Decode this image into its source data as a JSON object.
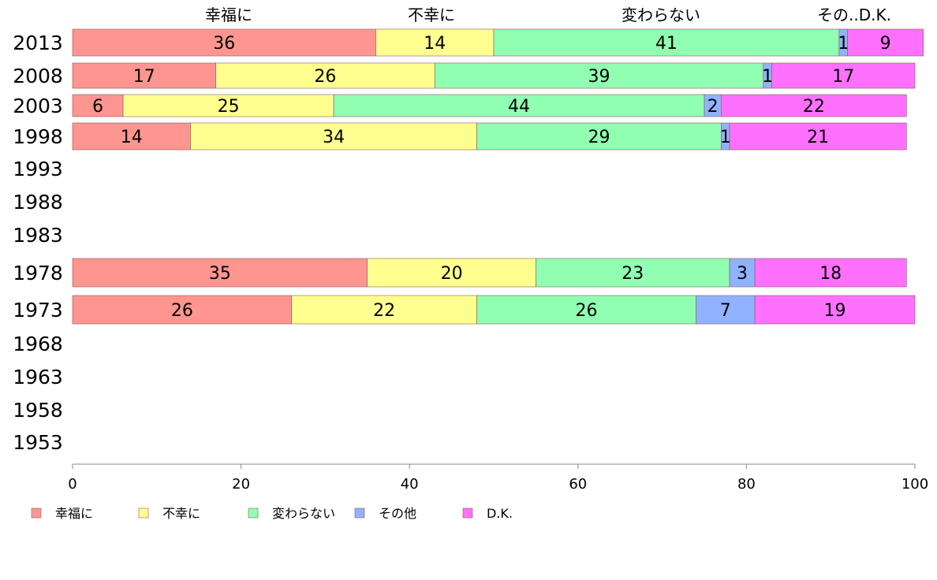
{
  "chart_data": {
    "type": "bar",
    "orientation": "horizontal",
    "stacked": true,
    "categories": [
      "2013",
      "2008",
      "2003",
      "1998",
      "1993",
      "1988",
      "1983",
      "1978",
      "1973",
      "1968",
      "1963",
      "1958",
      "1953"
    ],
    "series": [
      {
        "name": "幸福に",
        "color": "#ff9590",
        "values": [
          36,
          17,
          6,
          14,
          null,
          null,
          null,
          35,
          26,
          null,
          null,
          null,
          null
        ]
      },
      {
        "name": "不幸に",
        "color": "#ffff90",
        "values": [
          14,
          26,
          25,
          34,
          null,
          null,
          null,
          20,
          22,
          null,
          null,
          null,
          null
        ]
      },
      {
        "name": "変わらない",
        "color": "#90ffb2",
        "values": [
          41,
          39,
          44,
          29,
          null,
          null,
          null,
          23,
          26,
          null,
          null,
          null,
          null
        ]
      },
      {
        "name": "その他",
        "color": "#90b2ff",
        "values": [
          1,
          1,
          2,
          1,
          null,
          null,
          null,
          3,
          7,
          null,
          null,
          null,
          null
        ]
      },
      {
        "name": "D.K.",
        "color": "#ff70ff",
        "values": [
          9,
          17,
          22,
          21,
          null,
          null,
          null,
          18,
          19,
          null,
          null,
          null,
          null
        ]
      }
    ],
    "top_labels": [
      "幸福に",
      "不幸に",
      "変わらない",
      "その..D.K."
    ],
    "xlim": [
      0,
      100
    ],
    "xticks": [
      "0",
      "20",
      "40",
      "60",
      "80",
      "100"
    ],
    "grid": false,
    "legend_position": "bottom-left"
  }
}
